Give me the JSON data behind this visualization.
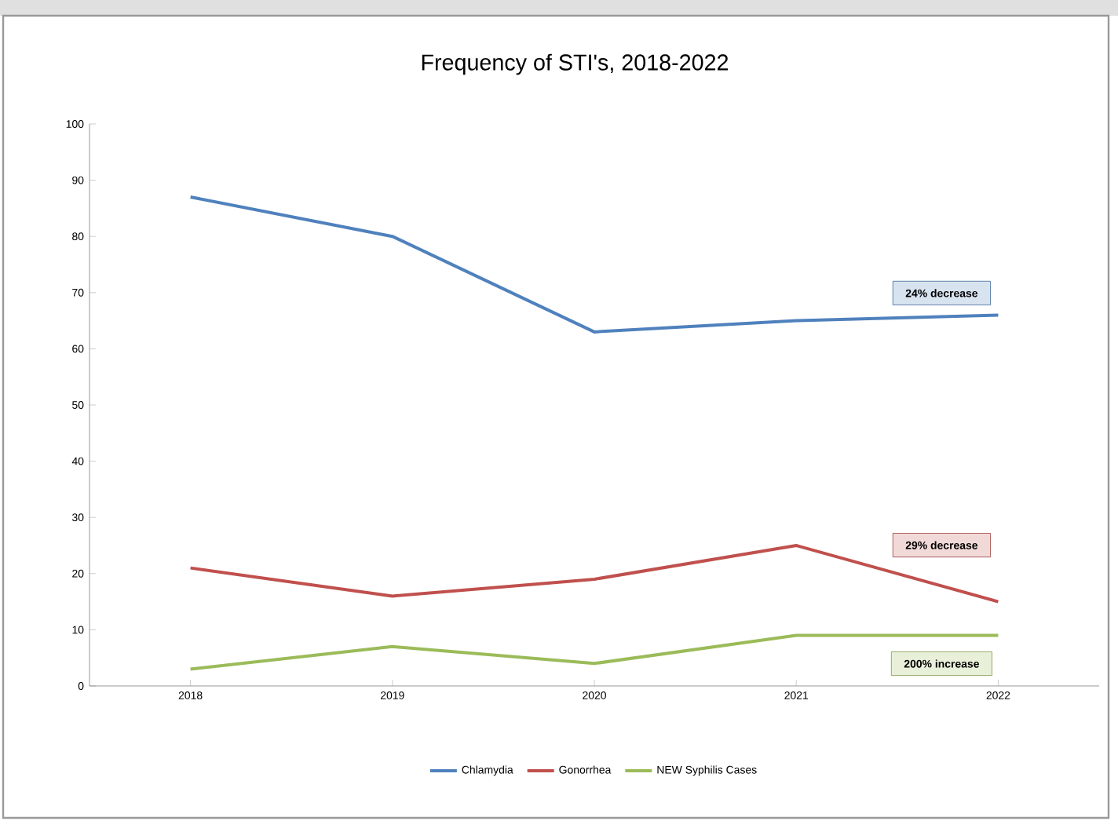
{
  "chart_data": {
    "type": "line",
    "title": "Frequency of STI's, 2018-2022",
    "categories": [
      "2018",
      "2019",
      "2020",
      "2021",
      "2022"
    ],
    "series": [
      {
        "name": "Chlamydia",
        "color": "#4f81bd",
        "values": [
          87,
          80,
          63,
          65,
          66
        ]
      },
      {
        "name": "Gonorrhea",
        "color": "#c0504d",
        "values": [
          21,
          16,
          19,
          25,
          15
        ]
      },
      {
        "name": "NEW Syphilis Cases",
        "color": "#9bbb59",
        "values": [
          3,
          7,
          4,
          9,
          9
        ]
      }
    ],
    "ylim": [
      0,
      100
    ],
    "yticks": [
      0,
      10,
      20,
      30,
      40,
      50,
      60,
      70,
      80,
      90,
      100
    ],
    "grid": false,
    "legend": "bottom",
    "marker": "none",
    "line_style": "solid",
    "annotations": [
      "24% decrease",
      "29% decrease",
      "200% increase"
    ]
  }
}
